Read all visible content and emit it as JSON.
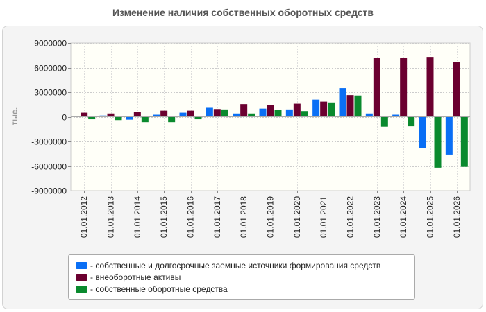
{
  "chart_data": {
    "type": "bar",
    "title": "Изменение наличия собственных оборотных средств",
    "ylabel": "тыс.",
    "ylim": [
      -9000000,
      9000000
    ],
    "yticks": [
      9000000,
      6000000,
      3000000,
      0,
      -3000000,
      -6000000,
      -9000000
    ],
    "ytick_labels": [
      "9000000",
      "6000000",
      "3000000",
      "0",
      "-3000000",
      "-6000000",
      "-9000000"
    ],
    "categories": [
      "01.01.2012",
      "01.01.2013",
      "01.01.2014",
      "01.01.2015",
      "01.01.2016",
      "01.01.2017",
      "01.01.2018",
      "01.01.2019",
      "01.01.2020",
      "01.01.2021",
      "01.01.2022",
      "01.01.2023",
      "01.01.2024",
      "01.01.2025",
      "01.01.2026"
    ],
    "series": [
      {
        "name": "- собственные и долгосрочные заемные источники формирования средств",
        "color": "#0a6ff5",
        "values": [
          80000,
          150000,
          -350000,
          250000,
          500000,
          1100000,
          400000,
          1000000,
          900000,
          2100000,
          3500000,
          400000,
          250000,
          -3800000,
          -4600000
        ]
      },
      {
        "name": "- внеоборотные активы",
        "color": "#6b0030",
        "values": [
          500000,
          400000,
          550000,
          750000,
          750000,
          950000,
          1550000,
          1400000,
          1600000,
          1850000,
          2650000,
          7200000,
          7200000,
          7300000,
          6700000
        ]
      },
      {
        "name": "- собственные оборотные средства",
        "color": "#0a8a2e",
        "values": [
          -300000,
          -400000,
          -650000,
          -650000,
          -300000,
          900000,
          400000,
          850000,
          700000,
          1750000,
          2600000,
          -1200000,
          -1150000,
          -6200000,
          -6100000
        ]
      }
    ],
    "grid": true,
    "legend_position": "bottom"
  }
}
